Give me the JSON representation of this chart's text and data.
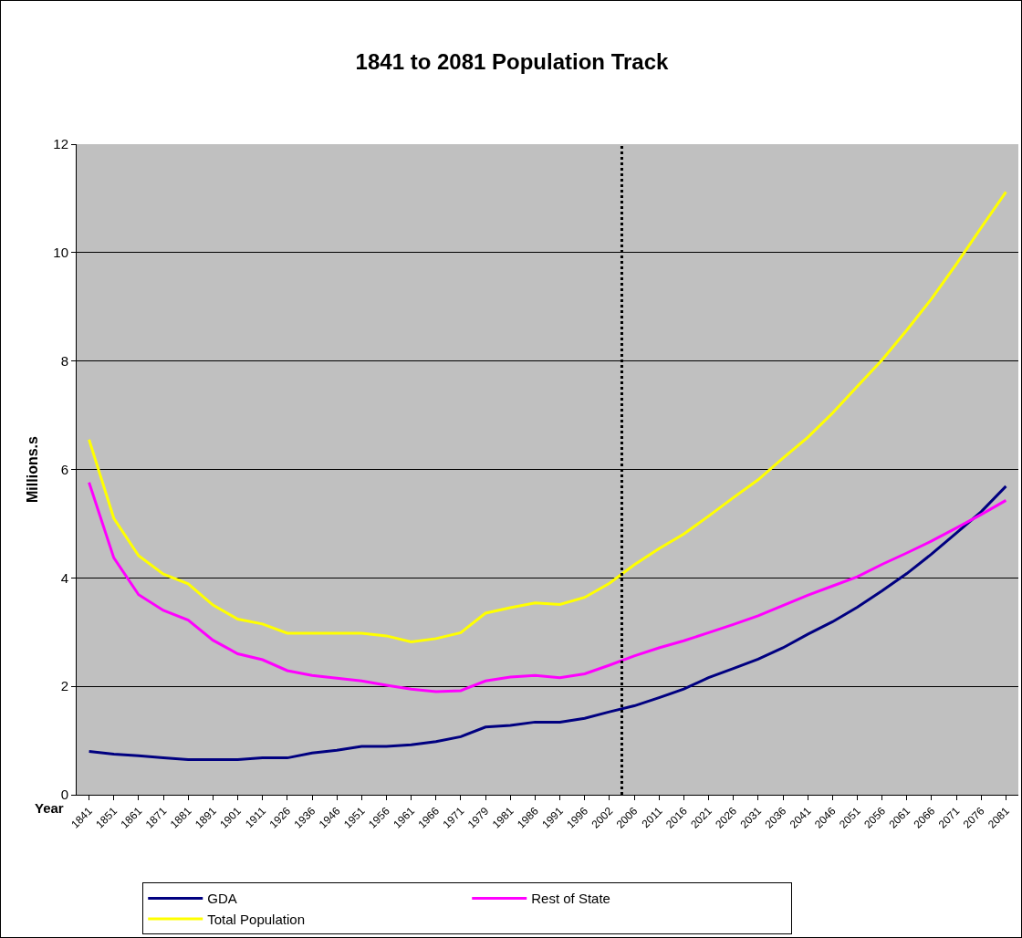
{
  "chart_data": {
    "type": "line",
    "title": "1841 to 2081 Population Track",
    "xlabel": "Year",
    "ylabel": "Millions.s",
    "categories": [
      "1841",
      "1851",
      "1861",
      "1871",
      "1881",
      "1891",
      "1901",
      "1911",
      "1926",
      "1936",
      "1946",
      "1951",
      "1956",
      "1961",
      "1966",
      "1971",
      "1979",
      "1981",
      "1986",
      "1991",
      "1996",
      "2002",
      "2006",
      "2011",
      "2016",
      "2021",
      "2026",
      "2031",
      "2036",
      "2041",
      "2046",
      "2051",
      "2056",
      "2061",
      "2066",
      "2071",
      "2076",
      "2081"
    ],
    "series": [
      {
        "name": "GDA",
        "color": "#000080",
        "values": [
          0.8,
          0.75,
          0.72,
          0.68,
          0.65,
          0.65,
          0.65,
          0.68,
          0.68,
          0.77,
          0.82,
          0.89,
          0.89,
          0.92,
          0.98,
          1.07,
          1.25,
          1.28,
          1.34,
          1.34,
          1.41,
          1.53,
          1.64,
          1.79,
          1.95,
          2.16,
          2.33,
          2.5,
          2.71,
          2.96,
          3.19,
          3.46,
          3.76,
          4.08,
          4.44,
          4.83,
          5.22,
          5.69
        ]
      },
      {
        "name": "Rest of State",
        "color": "#ff00ff",
        "values": [
          5.76,
          4.37,
          3.69,
          3.4,
          3.22,
          2.85,
          2.6,
          2.49,
          2.29,
          2.2,
          2.15,
          2.1,
          2.02,
          1.95,
          1.9,
          1.92,
          2.1,
          2.17,
          2.2,
          2.16,
          2.23,
          2.39,
          2.56,
          2.71,
          2.84,
          2.99,
          3.14,
          3.3,
          3.49,
          3.68,
          3.85,
          4.02,
          4.25,
          4.46,
          4.68,
          4.92,
          5.17,
          5.43
        ]
      },
      {
        "name": "Total Population",
        "color": "#ffff00",
        "values": [
          6.55,
          5.1,
          4.41,
          4.07,
          3.89,
          3.5,
          3.24,
          3.15,
          2.98,
          2.98,
          2.98,
          2.98,
          2.93,
          2.82,
          2.88,
          2.99,
          3.35,
          3.45,
          3.54,
          3.51,
          3.64,
          3.9,
          4.24,
          4.54,
          4.81,
          5.14,
          5.48,
          5.81,
          6.21,
          6.59,
          7.04,
          7.53,
          8.02,
          8.57,
          9.15,
          9.79,
          10.46,
          11.12
        ]
      }
    ],
    "ylim": [
      0,
      12
    ],
    "yticks": [
      0,
      2,
      4,
      6,
      8,
      10,
      12
    ],
    "grid": "y",
    "legend": "bottom",
    "marker": "none",
    "line_style": "solid",
    "ref_lines": [
      {
        "axis": "x",
        "value": "2006",
        "color": "#000000",
        "line_style": "dotted"
      }
    ]
  }
}
